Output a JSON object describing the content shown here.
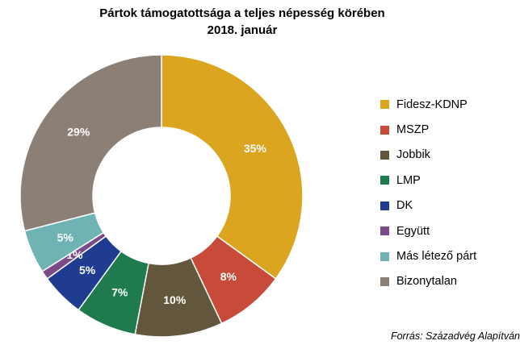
{
  "title": "Pártok támogatottsága a teljes népesség körében",
  "subtitle": "2018. január",
  "source": "Forrás: Századvég Alapítván",
  "chart_data": {
    "type": "pie",
    "donut": true,
    "title": "Pártok támogatottsága a teljes népesség körében",
    "subtitle": "2018. január",
    "legend_position": "right",
    "unit": "%",
    "slices": [
      {
        "name": "Fidesz-KDNP",
        "value": 35,
        "label": "35%",
        "color": "#dba520"
      },
      {
        "name": "MSZP",
        "value": 8,
        "label": "8%",
        "color": "#c84b3a"
      },
      {
        "name": "Jobbik",
        "value": 10,
        "label": "10%",
        "color": "#62563c"
      },
      {
        "name": "LMP",
        "value": 7,
        "label": "7%",
        "color": "#1f7a4e"
      },
      {
        "name": "DK",
        "value": 5,
        "label": "5%",
        "color": "#203c90"
      },
      {
        "name": "Együtt",
        "value": 1,
        "label": "1%",
        "color": "#7a4a8a"
      },
      {
        "name": "Más létező párt",
        "value": 5,
        "label": "5%",
        "color": "#6fb3b5"
      },
      {
        "name": "Bizonytalan",
        "value": 29,
        "label": "29%",
        "color": "#8b7f76"
      }
    ]
  }
}
